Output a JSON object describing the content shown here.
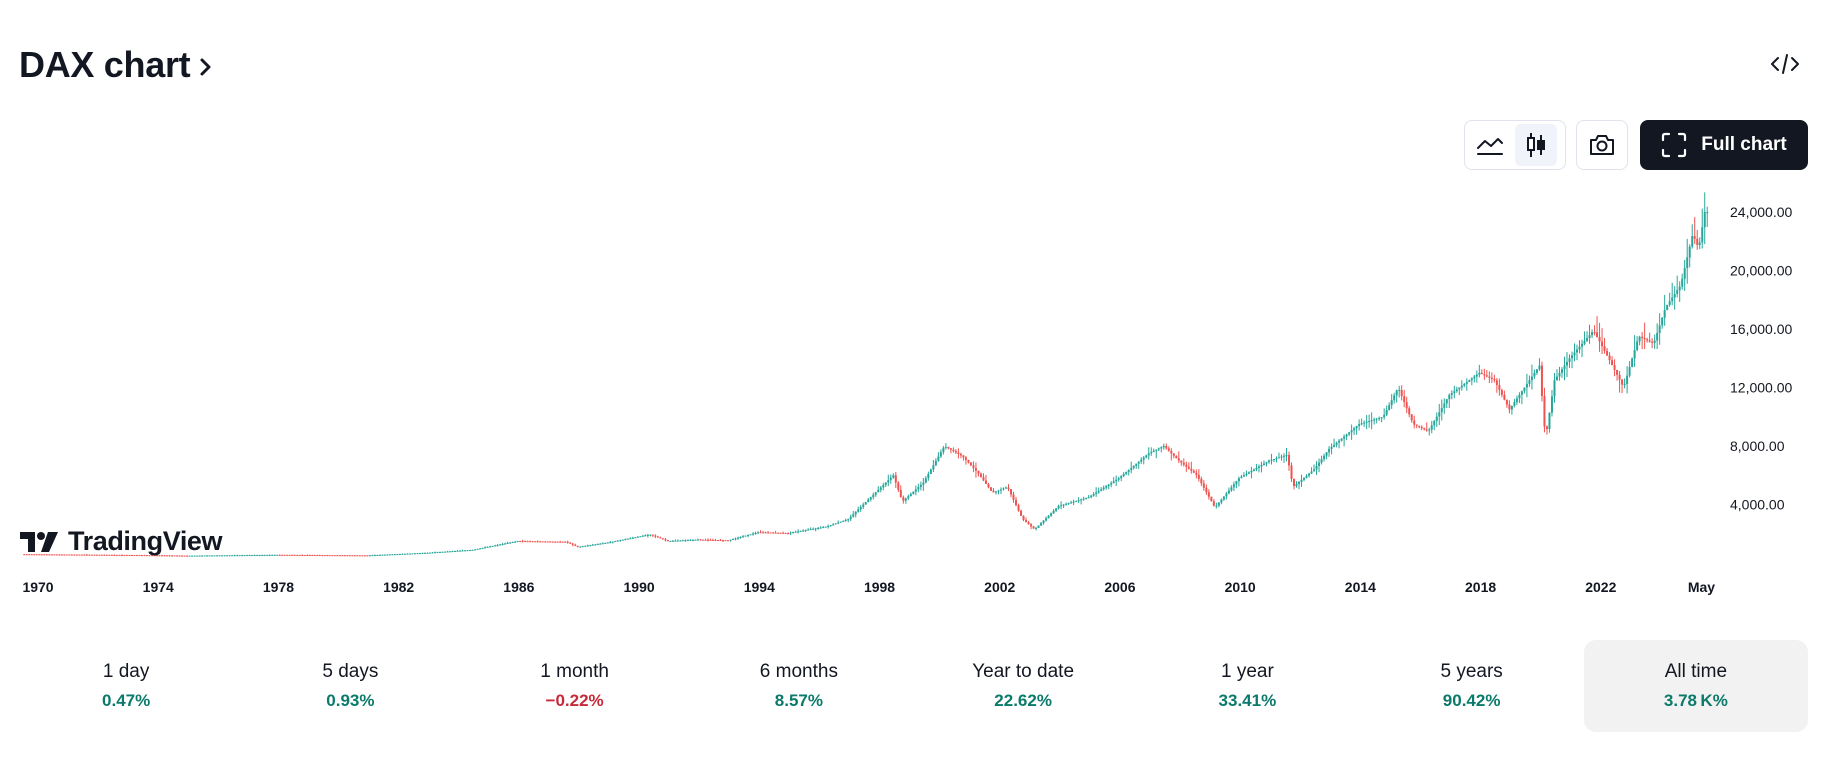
{
  "header": {
    "title": "DAX chart"
  },
  "toolbar": {
    "line_chart_icon": "line-chart-icon",
    "candles_icon": "candlestick-icon",
    "camera_icon": "camera-icon",
    "embed_icon": "code-icon",
    "full_chart_label": "Full chart"
  },
  "brand": {
    "name": "TradingView"
  },
  "colors": {
    "up": "#26a69a",
    "down": "#ef5350",
    "text": "#131722",
    "positive": "#0b7a6b",
    "negative": "#c42a3a"
  },
  "performance": [
    {
      "label": "1 day",
      "value": "0.47%",
      "trend": "pos"
    },
    {
      "label": "5 days",
      "value": "0.93%",
      "trend": "pos"
    },
    {
      "label": "1 month",
      "value": "−0.22%",
      "trend": "neg"
    },
    {
      "label": "6 months",
      "value": "8.57%",
      "trend": "pos"
    },
    {
      "label": "Year to date",
      "value": "22.62%",
      "trend": "pos"
    },
    {
      "label": "1 year",
      "value": "33.41%",
      "trend": "pos"
    },
    {
      "label": "5 years",
      "value": "90.42%",
      "trend": "pos"
    },
    {
      "label": "All time",
      "value": "3.78 K%",
      "trend": "pos",
      "selected": true
    }
  ],
  "chart_data": {
    "type": "candlestick",
    "title": "DAX chart",
    "x_range": [
      1969.4,
      2025.7
    ],
    "ylim": [
      0,
      25000
    ],
    "y_ticks": [
      {
        "value": 4000,
        "label": "4,000.00"
      },
      {
        "value": 8000,
        "label": "8,000.00"
      },
      {
        "value": 12000,
        "label": "12,000.00"
      },
      {
        "value": 16000,
        "label": "16,000.00"
      },
      {
        "value": 20000,
        "label": "20,000.00"
      },
      {
        "value": 24000,
        "label": "24,000.00"
      }
    ],
    "x_ticks": [
      {
        "value": 1970,
        "label": "1970"
      },
      {
        "value": 1974,
        "label": "1974"
      },
      {
        "value": 1978,
        "label": "1978"
      },
      {
        "value": 1982,
        "label": "1982"
      },
      {
        "value": 1986,
        "label": "1986"
      },
      {
        "value": 1990,
        "label": "1990"
      },
      {
        "value": 1994,
        "label": "1994"
      },
      {
        "value": 1998,
        "label": "1998"
      },
      {
        "value": 2002,
        "label": "2002"
      },
      {
        "value": 2006,
        "label": "2006"
      },
      {
        "value": 2010,
        "label": "2010"
      },
      {
        "value": 2014,
        "label": "2014"
      },
      {
        "value": 2018,
        "label": "2018"
      },
      {
        "value": 2022,
        "label": "2022"
      },
      {
        "value": 2025.35,
        "label": "May"
      }
    ],
    "series": [
      {
        "name": "DAX",
        "points": [
          [
            1969.5,
            600
          ],
          [
            1973.0,
            550
          ],
          [
            1975.0,
            500
          ],
          [
            1978.0,
            560
          ],
          [
            1981.0,
            520
          ],
          [
            1983.0,
            700
          ],
          [
            1984.5,
            900
          ],
          [
            1986.0,
            1500
          ],
          [
            1987.6,
            1450
          ],
          [
            1988.0,
            1100
          ],
          [
            1989.0,
            1400
          ],
          [
            1990.4,
            1950
          ],
          [
            1991.0,
            1500
          ],
          [
            1992.0,
            1600
          ],
          [
            1993.0,
            1550
          ],
          [
            1994.0,
            2100
          ],
          [
            1995.0,
            2050
          ],
          [
            1996.3,
            2500
          ],
          [
            1997.0,
            3000
          ],
          [
            1997.6,
            4200
          ],
          [
            1998.5,
            6000
          ],
          [
            1998.8,
            4200
          ],
          [
            1999.5,
            5500
          ],
          [
            2000.2,
            8000
          ],
          [
            2000.8,
            7300
          ],
          [
            2001.3,
            6200
          ],
          [
            2001.8,
            4800
          ],
          [
            2002.3,
            5200
          ],
          [
            2002.8,
            3000
          ],
          [
            2003.2,
            2300
          ],
          [
            2004.0,
            3900
          ],
          [
            2005.0,
            4500
          ],
          [
            2006.0,
            5800
          ],
          [
            2007.0,
            7500
          ],
          [
            2007.5,
            8000
          ],
          [
            2008.0,
            7000
          ],
          [
            2008.6,
            6000
          ],
          [
            2009.2,
            3800
          ],
          [
            2010.0,
            5800
          ],
          [
            2011.0,
            7000
          ],
          [
            2011.6,
            7400
          ],
          [
            2011.8,
            5200
          ],
          [
            2012.5,
            6400
          ],
          [
            2013.0,
            7800
          ],
          [
            2014.0,
            9500
          ],
          [
            2014.8,
            10000
          ],
          [
            2015.3,
            12000
          ],
          [
            2015.8,
            9500
          ],
          [
            2016.3,
            9000
          ],
          [
            2017.0,
            11500
          ],
          [
            2018.0,
            13000
          ],
          [
            2018.5,
            12500
          ],
          [
            2019.0,
            10500
          ],
          [
            2020.0,
            13500
          ],
          [
            2020.2,
            8500
          ],
          [
            2020.5,
            12500
          ],
          [
            2021.0,
            14000
          ],
          [
            2021.8,
            15900
          ],
          [
            2022.3,
            14000
          ],
          [
            2022.8,
            12000
          ],
          [
            2023.3,
            15500
          ],
          [
            2023.8,
            15000
          ],
          [
            2024.2,
            17500
          ],
          [
            2024.7,
            19000
          ],
          [
            2025.1,
            22500
          ],
          [
            2025.3,
            21500
          ],
          [
            2025.5,
            24000
          ]
        ]
      }
    ]
  }
}
